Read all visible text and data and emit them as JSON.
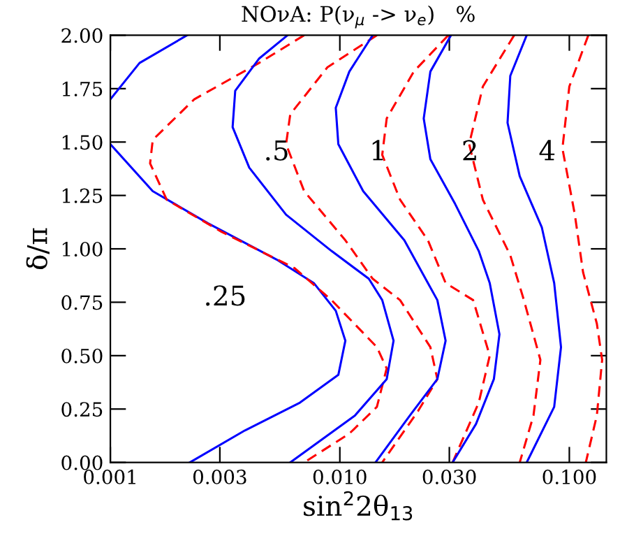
{
  "chart_data": {
    "type": "line",
    "title": "NOνA: P(ν$_{μ}$ -> ν$_{e}$)   %",
    "xlabel": "sin$^{2}$2θ$_{13}$",
    "ylabel": "δ/π",
    "log": "x",
    "grid": false,
    "marker": "none",
    "xlim": [
      0.001,
      0.145
    ],
    "ylim": [
      0,
      2
    ],
    "xticks": [
      {
        "value": 0.001,
        "label": "0.001"
      },
      {
        "value": 0.003,
        "label": "0.003"
      },
      {
        "value": 0.01,
        "label": "0.010"
      },
      {
        "value": 0.03,
        "label": "0.030"
      },
      {
        "value": 0.1,
        "label": "0.100"
      }
    ],
    "yticks": [
      {
        "value": 0,
        "label": "0.00"
      },
      {
        "value": 0.25,
        "label": "0.25"
      },
      {
        "value": 0.5,
        "label": "0.50"
      },
      {
        "value": 0.75,
        "label": "0.75"
      },
      {
        "value": 1,
        "label": "1.00"
      },
      {
        "value": 1.25,
        "label": "1.25"
      },
      {
        "value": 1.5,
        "label": "1.50"
      },
      {
        "value": 1.75,
        "label": "1.75"
      },
      {
        "value": 2,
        "label": "2.00"
      }
    ],
    "series": [
      {
        "name": ".25",
        "color": "#0000ff",
        "line_style": "solid",
        "x": [
          0.00216,
          0.00134,
          0.001,
          null,
          0.001,
          0.00153,
          0.00266,
          0.0053,
          0.0077,
          0.0096,
          0.01057,
          0.00985,
          0.0067,
          0.00386,
          0.00222
        ],
        "values": [
          2.0,
          1.87,
          1.7,
          null,
          1.49,
          1.27,
          1.12,
          0.95,
          0.84,
          0.71,
          0.57,
          0.41,
          0.28,
          0.15,
          0.0
        ]
      },
      {
        "color": "#ff0000",
        "line_style": "dashed",
        "x": [
          0.00699,
          0.00444,
          0.00232,
          0.00153,
          0.00149,
          0.00176,
          0.00305,
          0.00634,
          0.0092,
          0.0145,
          0.016,
          0.0145,
          0.011,
          0.00699
        ],
        "values": [
          2.0,
          1.87,
          1.7,
          1.51,
          1.4,
          1.23,
          1.08,
          0.91,
          0.76,
          0.54,
          0.44,
          0.26,
          0.135,
          0.0
        ]
      },
      {
        "name": ".5",
        "color": "#0000ff",
        "line_style": "solid",
        "x": [
          0.00592,
          0.00444,
          0.0035,
          0.00341,
          0.00403,
          0.00583,
          0.0092,
          0.01337,
          0.0153,
          0.01714,
          0.016,
          0.01164,
          0.00608
        ],
        "values": [
          2.0,
          1.89,
          1.74,
          1.57,
          1.38,
          1.16,
          0.99,
          0.86,
          0.76,
          0.57,
          0.39,
          0.22,
          0.0
        ]
      },
      {
        "color": "#ff0000",
        "line_style": "dashed",
        "x": [
          0.0145,
          0.00883,
          0.00608,
          0.00583,
          0.00699,
          0.01057,
          0.0139,
          0.0183,
          0.0248,
          0.0266,
          0.0219,
          0.0153
        ],
        "values": [
          2.0,
          1.85,
          1.63,
          1.49,
          1.27,
          1.04,
          0.86,
          0.76,
          0.54,
          0.39,
          0.24,
          0.0
        ]
      },
      {
        "name": "1",
        "color": "#0000ff",
        "line_style": "solid",
        "x": [
          0.0139,
          0.011,
          0.0096,
          0.00985,
          0.01264,
          0.0191,
          0.0242,
          0.0266,
          0.0289,
          0.0266,
          0.0202,
          0.0143
        ],
        "values": [
          2.0,
          1.83,
          1.66,
          1.49,
          1.27,
          1.04,
          0.84,
          0.76,
          0.57,
          0.39,
          0.22,
          0.0
        ]
      },
      {
        "color": "#ff0000",
        "line_style": "dashed",
        "x": [
          0.0297,
          0.021,
          0.016,
          0.0153,
          0.0183,
          0.0242,
          0.0289,
          0.0381,
          0.045,
          0.0403,
          0.031
        ],
        "values": [
          2.0,
          1.83,
          1.61,
          1.44,
          1.23,
          1.04,
          0.84,
          0.76,
          0.5,
          0.28,
          0.0
        ]
      },
      {
        "name": "2",
        "color": "#0000ff",
        "line_style": "solid",
        "x": [
          0.0305,
          0.0248,
          0.0232,
          0.0248,
          0.0318,
          0.0403,
          0.045,
          0.0496,
          0.0469,
          0.0392,
          0.031
        ],
        "values": [
          2.0,
          1.83,
          1.61,
          1.42,
          1.21,
          0.99,
          0.84,
          0.6,
          0.39,
          0.18,
          0.0
        ]
      },
      {
        "color": "#ff0000",
        "line_style": "dashed",
        "x": [
          0.0575,
          0.042,
          0.0366,
          0.042,
          0.0553,
          0.0634,
          0.0748,
          0.0698,
          0.0608
        ],
        "values": [
          2.0,
          1.76,
          1.49,
          1.23,
          0.97,
          0.76,
          0.48,
          0.22,
          0.0
        ]
      },
      {
        "name": "4",
        "color": "#0000ff",
        "line_style": "solid",
        "x": [
          0.0652,
          0.0553,
          0.0538,
          0.0608,
          0.0759,
          0.0859,
          0.092,
          0.0859,
          0.0652
        ],
        "values": [
          2.0,
          1.81,
          1.59,
          1.34,
          1.1,
          0.84,
          0.54,
          0.26,
          0.0
        ]
      },
      {
        "color": "#ff0000",
        "line_style": "dashed",
        "x": [
          0.121,
          0.1,
          0.0933,
          0.1057,
          0.1148,
          0.1318,
          0.139,
          0.1318,
          0.118
        ],
        "values": [
          2.0,
          1.76,
          1.47,
          1.16,
          0.89,
          0.65,
          0.48,
          0.22,
          0.0
        ]
      }
    ]
  }
}
